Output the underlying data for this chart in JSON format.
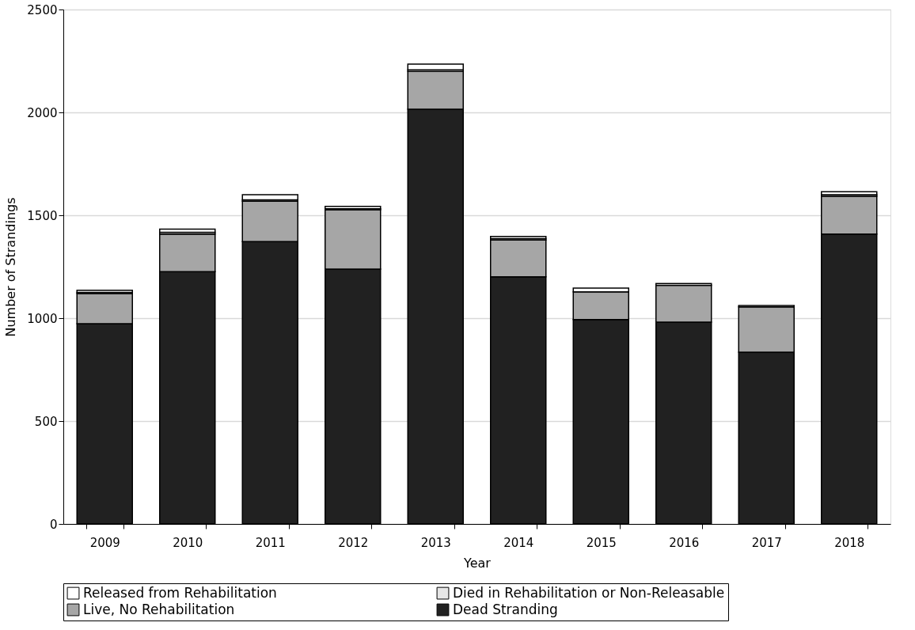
{
  "chart_data": {
    "type": "bar",
    "stacked": true,
    "xlabel": "Year",
    "ylabel": "Number of Strandings",
    "categories": [
      "2009",
      "2010",
      "2011",
      "2012",
      "2013",
      "2014",
      "2015",
      "2016",
      "2017",
      "2018"
    ],
    "series": [
      {
        "name": "Dead Stranding",
        "color": "#212121",
        "values": [
          973,
          1226,
          1372,
          1238,
          2015,
          1201,
          993,
          981,
          835,
          1409
        ]
      },
      {
        "name": "Live, No Rehabilitation",
        "color": "#a6a6a6",
        "values": [
          147,
          183,
          196,
          289,
          184,
          179,
          135,
          179,
          220,
          183
        ]
      },
      {
        "name": "Died in Rehabilitation or Non-Releasable",
        "color": "#e6e6e6",
        "values": [
          5,
          8,
          7,
          5,
          8,
          7,
          null,
          null,
          null,
          8
        ]
      },
      {
        "name": "Released from Rehabilitation",
        "color": "#ffffff",
        "values": [
          11,
          16,
          25,
          11,
          28,
          10,
          18,
          8,
          7,
          14
        ]
      }
    ],
    "ylim": [
      0,
      2500
    ],
    "yticks": [
      0,
      500,
      1000,
      1500,
      2000,
      2500
    ],
    "grid": "y",
    "legend": "bottom"
  }
}
